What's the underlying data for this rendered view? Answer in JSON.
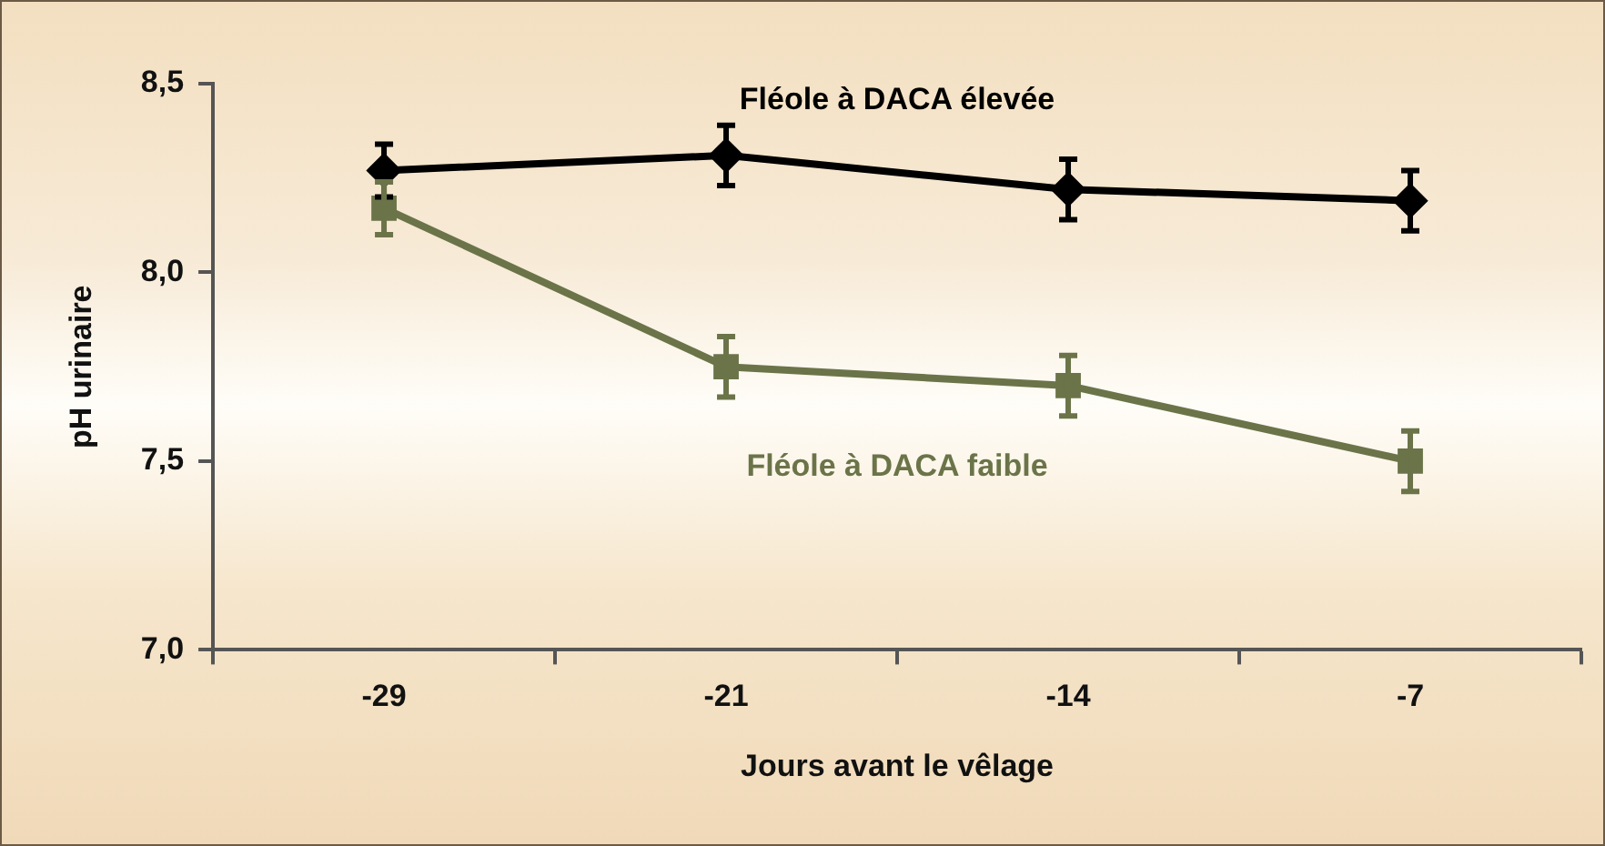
{
  "chart_data": {
    "type": "line",
    "xlabel": "Jours avant le vêlage",
    "ylabel": "pH urinaire",
    "categories": [
      "-29",
      "-21",
      "-14",
      "-7"
    ],
    "ylim": [
      7.0,
      8.5
    ],
    "yticks": [
      {
        "value": 7.0,
        "label": "7,0"
      },
      {
        "value": 7.5,
        "label": "7,5"
      },
      {
        "value": 8.0,
        "label": "8,0"
      },
      {
        "value": 8.5,
        "label": "8,5"
      }
    ],
    "grid": false,
    "legend": false,
    "line_style": "solid",
    "series": [
      {
        "name": "Fléole à DACA élevée",
        "color": "#000000",
        "marker": "diamond",
        "values": [
          8.27,
          8.31,
          8.22,
          8.19
        ],
        "errors": [
          0.07,
          0.08,
          0.08,
          0.08
        ]
      },
      {
        "name": "Fléole à DACA faible",
        "color": "#6b7449",
        "marker": "square",
        "values": [
          8.17,
          7.75,
          7.7,
          7.5
        ],
        "errors": [
          0.07,
          0.08,
          0.08,
          0.08
        ]
      }
    ]
  }
}
